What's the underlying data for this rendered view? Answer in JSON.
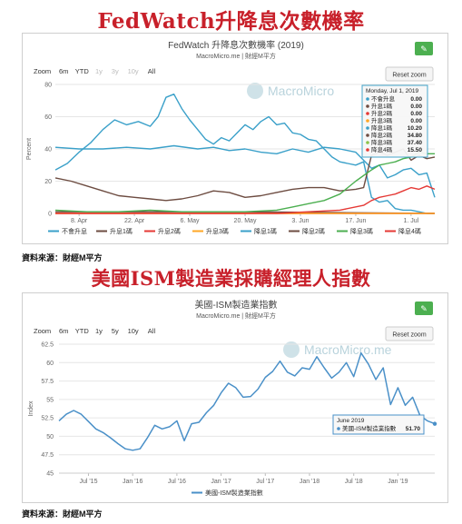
{
  "headline1": "FedWatch升降息次數機率",
  "headline2": "美國ISM製造業採購經理人指數",
  "source1": "資料來源：財經M平方",
  "source2": "資料來源：財經M平方",
  "colors": {
    "headline": "#c8202a",
    "teal": "#3aa0c9",
    "brown": "#6d4c41",
    "green": "#4caf50",
    "red": "#e53935",
    "orange": "#ffa726",
    "lightgreen": "#8bc34a",
    "ism": "#4a90c8"
  },
  "chart1": {
    "title": "FedWatch 升降息次數機率 (2019)",
    "subtitle": "MacroMicro.me | 財經M平方",
    "zoom_label": "Zoom",
    "zoom_options": [
      "6m",
      "YTD",
      "1y",
      "3y",
      "10y",
      "All"
    ],
    "reset_label": "Reset zoom",
    "watermark": "MacroMicro",
    "ylabel": "Percent",
    "edit_icon": "pencil-icon",
    "tooltip": {
      "header": "Monday, Jul 1, 2019",
      "rows": [
        {
          "label": "不會升息",
          "value": "0.00",
          "color": "#3aa0c9"
        },
        {
          "label": "升息1碼",
          "value": "0.00",
          "color": "#6d4c41"
        },
        {
          "label": "升息2碼",
          "value": "0.00",
          "color": "#e53935"
        },
        {
          "label": "升息3碼",
          "value": "0.00",
          "color": "#ffa726"
        },
        {
          "label": "降息1碼",
          "value": "10.20",
          "color": "#3aa0c9"
        },
        {
          "label": "降息2碼",
          "value": "34.80",
          "color": "#6d4c41"
        },
        {
          "label": "降息3碼",
          "value": "37.40",
          "color": "#8bc34a"
        },
        {
          "label": "降息4碼",
          "value": "15.50",
          "color": "#e53935"
        }
      ]
    }
  },
  "chart2": {
    "title": "美國-ISM製造業指數",
    "subtitle": "MacroMicro.me | 財經M平方",
    "zoom_label": "Zoom",
    "zoom_options": [
      "6m",
      "YTD",
      "1y",
      "5y",
      "10y",
      "All"
    ],
    "reset_label": "Reset zoom",
    "watermark": "MacroMicro.me",
    "ylabel": "Index",
    "edit_icon": "pencil-icon",
    "tooltip": {
      "header": "June 2019",
      "label": "美國-ISM製造業指數",
      "value": "51.70"
    }
  },
  "chart_data": [
    {
      "type": "line",
      "title": "FedWatch 升降息次數機率 (2019)",
      "ylabel": "Percent",
      "ylim": [
        0,
        80
      ],
      "yticks": [
        "0",
        "20",
        "40",
        "60",
        "80"
      ],
      "x_tick_labels": [
        "8. Apr",
        "22. Apr",
        "6. May",
        "20. May",
        "3. Jun",
        "17. Jun",
        "1. Jul"
      ],
      "x_range_days": [
        0,
        96
      ],
      "x_tick_days": [
        24,
        38,
        52,
        66,
        80,
        94,
        108
      ],
      "grid": true,
      "legend_position": "bottom",
      "series": [
        {
          "name": "不會升息",
          "color": "#3aa0c9",
          "points": [
            [
              0,
              27
            ],
            [
              3,
              31
            ],
            [
              6,
              38
            ],
            [
              9,
              44
            ],
            [
              12,
              52
            ],
            [
              15,
              58
            ],
            [
              18,
              55
            ],
            [
              21,
              57
            ],
            [
              24,
              54
            ],
            [
              26,
              60
            ],
            [
              28,
              72
            ],
            [
              30,
              74
            ],
            [
              32,
              65
            ],
            [
              34,
              58
            ],
            [
              36,
              52
            ],
            [
              38,
              46
            ],
            [
              40,
              43
            ],
            [
              42,
              47
            ],
            [
              44,
              45
            ],
            [
              46,
              50
            ],
            [
              48,
              55
            ],
            [
              50,
              52
            ],
            [
              52,
              57
            ],
            [
              54,
              60
            ],
            [
              56,
              55
            ],
            [
              58,
              56
            ],
            [
              60,
              50
            ],
            [
              62,
              49
            ],
            [
              64,
              46
            ],
            [
              66,
              45
            ],
            [
              68,
              40
            ],
            [
              70,
              35
            ],
            [
              72,
              32
            ],
            [
              74,
              31
            ],
            [
              76,
              30
            ],
            [
              78,
              32
            ],
            [
              80,
              10
            ],
            [
              82,
              7
            ],
            [
              84,
              8
            ],
            [
              86,
              3
            ],
            [
              88,
              2
            ],
            [
              90,
              2
            ],
            [
              92,
              1
            ],
            [
              94,
              0
            ],
            [
              96,
              0
            ]
          ]
        },
        {
          "name": "升息1碼",
          "color": "#6d4c41",
          "points": [
            [
              0,
              1
            ],
            [
              24,
              1
            ],
            [
              48,
              1
            ],
            [
              72,
              0.5
            ],
            [
              96,
              0
            ]
          ]
        },
        {
          "name": "升息2碼",
          "color": "#e53935",
          "points": [
            [
              0,
              0
            ],
            [
              96,
              0
            ]
          ]
        },
        {
          "name": "升息3碼",
          "color": "#ffa726",
          "points": [
            [
              0,
              0
            ],
            [
              96,
              0
            ]
          ]
        },
        {
          "name": "降息1碼",
          "color": "#3aa0c9",
          "points": [
            [
              0,
              41
            ],
            [
              6,
              40
            ],
            [
              12,
              40
            ],
            [
              18,
              41
            ],
            [
              24,
              40
            ],
            [
              30,
              42
            ],
            [
              36,
              40
            ],
            [
              40,
              41
            ],
            [
              44,
              39
            ],
            [
              48,
              40
            ],
            [
              52,
              38
            ],
            [
              56,
              37
            ],
            [
              60,
              40
            ],
            [
              64,
              38
            ],
            [
              68,
              41
            ],
            [
              72,
              40
            ],
            [
              76,
              38
            ],
            [
              80,
              28
            ],
            [
              82,
              30
            ],
            [
              84,
              22
            ],
            [
              86,
              24
            ],
            [
              88,
              27
            ],
            [
              90,
              28
            ],
            [
              92,
              24
            ],
            [
              94,
              25
            ],
            [
              96,
              10
            ]
          ]
        },
        {
          "name": "降息2碼",
          "color": "#6d4c41",
          "points": [
            [
              0,
              22
            ],
            [
              4,
              20
            ],
            [
              8,
              17
            ],
            [
              12,
              14
            ],
            [
              16,
              11
            ],
            [
              20,
              10
            ],
            [
              24,
              9
            ],
            [
              28,
              8
            ],
            [
              32,
              9
            ],
            [
              36,
              11
            ],
            [
              40,
              14
            ],
            [
              44,
              13
            ],
            [
              48,
              10
            ],
            [
              52,
              11
            ],
            [
              56,
              13
            ],
            [
              60,
              15
            ],
            [
              64,
              16
            ],
            [
              68,
              16
            ],
            [
              72,
              14
            ],
            [
              76,
              15
            ],
            [
              78,
              16
            ],
            [
              80,
              36
            ],
            [
              82,
              38
            ],
            [
              84,
              36
            ],
            [
              86,
              38
            ],
            [
              88,
              40
            ],
            [
              90,
              33
            ],
            [
              92,
              36
            ],
            [
              94,
              34
            ],
            [
              96,
              35
            ]
          ]
        },
        {
          "name": "降息3碼",
          "color": "#4caf50",
          "points": [
            [
              0,
              2
            ],
            [
              8,
              1
            ],
            [
              16,
              1
            ],
            [
              24,
              2
            ],
            [
              32,
              1
            ],
            [
              40,
              1
            ],
            [
              48,
              1
            ],
            [
              56,
              2
            ],
            [
              60,
              4
            ],
            [
              64,
              6
            ],
            [
              68,
              8
            ],
            [
              72,
              12
            ],
            [
              76,
              20
            ],
            [
              80,
              27
            ],
            [
              82,
              30
            ],
            [
              84,
              31
            ],
            [
              86,
              32
            ],
            [
              88,
              34
            ],
            [
              90,
              35
            ],
            [
              92,
              38
            ],
            [
              94,
              37
            ],
            [
              96,
              37
            ]
          ]
        },
        {
          "name": "降息4碼",
          "color": "#e53935",
          "points": [
            [
              0,
              0
            ],
            [
              56,
              0
            ],
            [
              64,
              1
            ],
            [
              72,
              2
            ],
            [
              78,
              5
            ],
            [
              80,
              8
            ],
            [
              82,
              10
            ],
            [
              84,
              11
            ],
            [
              86,
              12
            ],
            [
              88,
              14
            ],
            [
              90,
              16
            ],
            [
              92,
              15
            ],
            [
              94,
              17
            ],
            [
              96,
              15
            ]
          ]
        }
      ]
    },
    {
      "type": "line",
      "title": "美國-ISM製造業指數",
      "ylabel": "Index",
      "ylim": [
        45,
        62.5
      ],
      "yticks": [
        "45",
        "47.5",
        "50",
        "52.5",
        "55",
        "57.5",
        "60",
        "62.5"
      ],
      "x_tick_labels": [
        "Jul '15",
        "Jan '16",
        "Jul '16",
        "Jan '17",
        "Jul '17",
        "Jan '18",
        "Jul '18",
        "Jan '19"
      ],
      "x_tick_index": [
        4,
        10,
        16,
        22,
        28,
        34,
        40,
        46
      ],
      "grid": true,
      "legend_position": "bottom",
      "series": [
        {
          "name": "美國-ISM製造業指數",
          "color": "#4a90c8",
          "x": [
            "Mar '15",
            "Apr '15",
            "May '15",
            "Jun '15",
            "Jul '15",
            "Aug '15",
            "Sep '15",
            "Oct '15",
            "Nov '15",
            "Dec '15",
            "Jan '16",
            "Feb '16",
            "Mar '16",
            "Apr '16",
            "May '16",
            "Jun '16",
            "Jul '16",
            "Aug '16",
            "Sep '16",
            "Oct '16",
            "Nov '16",
            "Dec '16",
            "Jan '17",
            "Feb '17",
            "Mar '17",
            "Apr '17",
            "May '17",
            "Jun '17",
            "Jul '17",
            "Aug '17",
            "Sep '17",
            "Oct '17",
            "Nov '17",
            "Dec '17",
            "Jan '18",
            "Feb '18",
            "Mar '18",
            "Apr '18",
            "May '18",
            "Jun '18",
            "Jul '18",
            "Aug '18",
            "Sep '18",
            "Oct '18",
            "Nov '18",
            "Dec '18",
            "Jan '19",
            "Feb '19",
            "Mar '19",
            "Apr '19",
            "May '19",
            "Jun '19"
          ],
          "values": [
            52.1,
            53.0,
            53.5,
            53.0,
            52.0,
            51.0,
            50.5,
            49.8,
            49.0,
            48.3,
            48.1,
            48.3,
            49.8,
            51.5,
            51.0,
            51.3,
            52.1,
            49.4,
            51.7,
            51.9,
            53.2,
            54.2,
            55.9,
            57.2,
            56.6,
            55.3,
            55.4,
            56.4,
            58.0,
            58.8,
            60.2,
            58.7,
            58.2,
            59.3,
            59.1,
            60.8,
            59.3,
            57.9,
            58.7,
            60.0,
            58.1,
            61.3,
            59.8,
            57.7,
            59.3,
            54.3,
            56.6,
            54.2,
            55.3,
            52.8,
            52.1,
            51.7
          ]
        }
      ]
    }
  ]
}
